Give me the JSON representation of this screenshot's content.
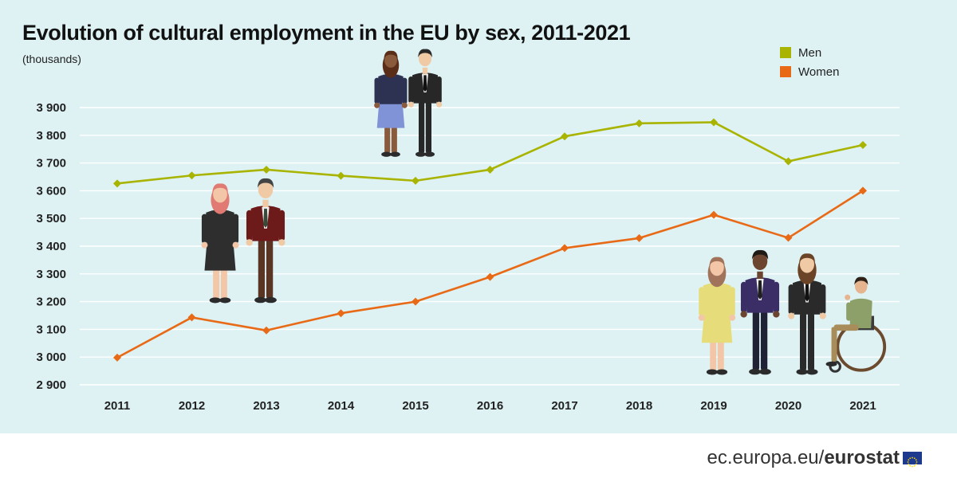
{
  "chart_data": {
    "type": "line",
    "title": "Evolution of cultural employment in the EU by sex, 2011-2021",
    "subtitle": "(thousands)",
    "x": [
      "2011",
      "2012",
      "2013",
      "2014",
      "2015",
      "2016",
      "2017",
      "2018",
      "2019",
      "2020",
      "2021"
    ],
    "series": [
      {
        "name": "Men",
        "color": "#a8b400",
        "values": [
          3626,
          3655,
          3676,
          3654,
          3636,
          3676,
          3796,
          3843,
          3847,
          3706,
          3765
        ]
      },
      {
        "name": "Women",
        "color": "#e86a16",
        "values": [
          2998,
          3143,
          3096,
          3158,
          3200,
          3289,
          3393,
          3429,
          3513,
          3430,
          3600
        ]
      }
    ],
    "ylim": [
      2900,
      3900
    ],
    "yticks": [
      2900,
      3000,
      3100,
      3200,
      3300,
      3400,
      3500,
      3600,
      3700,
      3800,
      3900
    ],
    "ytick_labels": [
      "2 900",
      "3 000",
      "3 100",
      "3 200",
      "3 300",
      "3 400",
      "3 500",
      "3 600",
      "3 700",
      "3 800",
      "3 900"
    ],
    "grid": true,
    "legend": "top-right"
  },
  "footer": {
    "site": "ec.europa.eu/",
    "brand": "eurostat"
  }
}
